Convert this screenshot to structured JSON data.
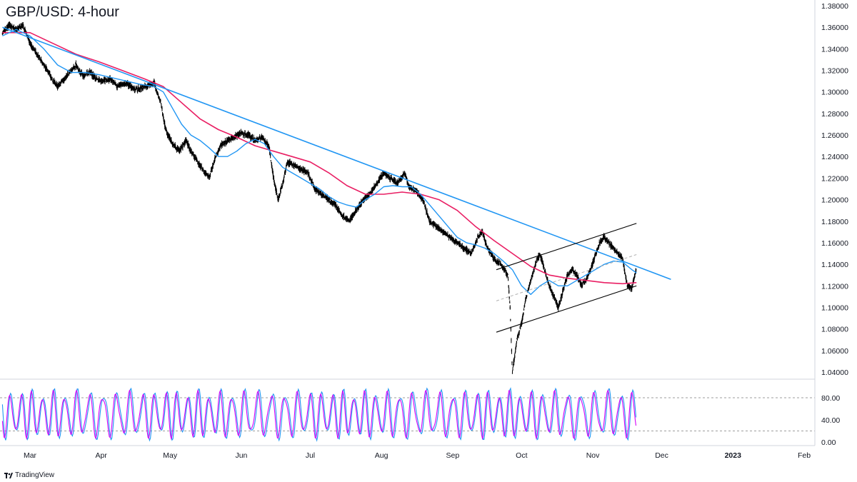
{
  "title": "GBP/USD: 4-hour",
  "brand": "TradingView",
  "colors": {
    "candles": "#000000",
    "ma_fast": "#2196f3",
    "ma_slow": "#e91e63",
    "trendline": "#2196f3",
    "channel": "#000000",
    "stoch_k": "#2196f3",
    "stoch_d": "#d500f9",
    "grid": "#9e9e9e"
  },
  "chart_data": [
    {
      "type": "line",
      "description_panel": "price",
      "ylim": [
        1.03,
        1.38
      ],
      "yticks": [
        "1.38000",
        "1.36000",
        "1.34000",
        "1.32000",
        "1.30000",
        "1.28000",
        "1.26000",
        "1.24000",
        "1.22000",
        "1.20000",
        "1.18000",
        "1.16000",
        "1.14000",
        "1.12000",
        "1.10000",
        "1.08000",
        "1.06000",
        "1.04000"
      ],
      "x_labels": [
        "Mar",
        "Apr",
        "May",
        "Jun",
        "Jul",
        "Aug",
        "Sep",
        "Oct",
        "Nov",
        "Dec",
        "2023",
        "Feb"
      ],
      "x_label_days": [
        0,
        31,
        61,
        92,
        122,
        153,
        184,
        214,
        245,
        275,
        306,
        337
      ],
      "x_range_days": [
        -12,
        357
      ],
      "series": [
        {
          "kind": "price",
          "points": [
            [
              -12,
              1.355
            ],
            [
              -9,
              1.362
            ],
            [
              -6,
              1.358
            ],
            [
              -3,
              1.362
            ],
            [
              0,
              1.345
            ],
            [
              3,
              1.335
            ],
            [
              6,
              1.325
            ],
            [
              8,
              1.318
            ],
            [
              10,
              1.31
            ],
            [
              12,
              1.305
            ],
            [
              14,
              1.31
            ],
            [
              16,
              1.315
            ],
            [
              18,
              1.32
            ],
            [
              20,
              1.325
            ],
            [
              23,
              1.315
            ],
            [
              26,
              1.318
            ],
            [
              29,
              1.312
            ],
            [
              32,
              1.31
            ],
            [
              35,
              1.312
            ],
            [
              38,
              1.305
            ],
            [
              42,
              1.308
            ],
            [
              46,
              1.302
            ],
            [
              50,
              1.305
            ],
            [
              54,
              1.308
            ],
            [
              57,
              1.29
            ],
            [
              59,
              1.265
            ],
            [
              62,
              1.252
            ],
            [
              65,
              1.245
            ],
            [
              68,
              1.255
            ],
            [
              70,
              1.245
            ],
            [
              73,
              1.235
            ],
            [
              76,
              1.225
            ],
            [
              78,
              1.22
            ],
            [
              80,
              1.235
            ],
            [
              83,
              1.25
            ],
            [
              86,
              1.255
            ],
            [
              89,
              1.258
            ],
            [
              92,
              1.262
            ],
            [
              95,
              1.26
            ],
            [
              98,
              1.255
            ],
            [
              101,
              1.258
            ],
            [
              104,
              1.25
            ],
            [
              106,
              1.22
            ],
            [
              108,
              1.2
            ],
            [
              110,
              1.215
            ],
            [
              112,
              1.235
            ],
            [
              115,
              1.232
            ],
            [
              118,
              1.228
            ],
            [
              121,
              1.225
            ],
            [
              124,
              1.21
            ],
            [
              127,
              1.205
            ],
            [
              130,
              1.2
            ],
            [
              133,
              1.195
            ],
            [
              136,
              1.185
            ],
            [
              139,
              1.18
            ],
            [
              142,
              1.19
            ],
            [
              145,
              1.2
            ],
            [
              148,
              1.205
            ],
            [
              151,
              1.215
            ],
            [
              154,
              1.225
            ],
            [
              157,
              1.22
            ],
            [
              160,
              1.215
            ],
            [
              163,
              1.225
            ],
            [
              165,
              1.212
            ],
            [
              168,
              1.208
            ],
            [
              171,
              1.2
            ],
            [
              174,
              1.18
            ],
            [
              177,
              1.175
            ],
            [
              180,
              1.17
            ],
            [
              183,
              1.165
            ],
            [
              186,
              1.16
            ],
            [
              189,
              1.155
            ],
            [
              192,
              1.15
            ],
            [
              195,
              1.165
            ],
            [
              197,
              1.17
            ],
            [
              199,
              1.155
            ],
            [
              202,
              1.145
            ],
            [
              205,
              1.14
            ],
            [
              208,
              1.13
            ],
            [
              209,
              1.1
            ],
            [
              210,
              1.04
            ],
            [
              212,
              1.07
            ],
            [
              214,
              1.085
            ],
            [
              216,
              1.11
            ],
            [
              218,
              1.125
            ],
            [
              220,
              1.14
            ],
            [
              222,
              1.15
            ],
            [
              224,
              1.135
            ],
            [
              226,
              1.12
            ],
            [
              228,
              1.11
            ],
            [
              230,
              1.1
            ],
            [
              232,
              1.115
            ],
            [
              234,
              1.13
            ],
            [
              236,
              1.135
            ],
            [
              238,
              1.13
            ],
            [
              240,
              1.12
            ],
            [
              242,
              1.125
            ],
            [
              244,
              1.135
            ],
            [
              246,
              1.148
            ],
            [
              248,
              1.16
            ],
            [
              250,
              1.165
            ],
            [
              252,
              1.16
            ],
            [
              254,
              1.155
            ],
            [
              256,
              1.15
            ],
            [
              258,
              1.145
            ],
            [
              260,
              1.12
            ],
            [
              262,
              1.118
            ],
            [
              263,
              1.128
            ],
            [
              264,
              1.135
            ]
          ]
        },
        {
          "kind": "ma_fast",
          "points": [
            [
              -12,
              1.352
            ],
            [
              -6,
              1.358
            ],
            [
              0,
              1.352
            ],
            [
              6,
              1.34
            ],
            [
              12,
              1.325
            ],
            [
              18,
              1.318
            ],
            [
              24,
              1.318
            ],
            [
              30,
              1.316
            ],
            [
              36,
              1.313
            ],
            [
              42,
              1.31
            ],
            [
              48,
              1.307
            ],
            [
              54,
              1.305
            ],
            [
              58,
              1.3
            ],
            [
              62,
              1.285
            ],
            [
              66,
              1.27
            ],
            [
              70,
              1.26
            ],
            [
              74,
              1.255
            ],
            [
              78,
              1.248
            ],
            [
              82,
              1.24
            ],
            [
              86,
              1.24
            ],
            [
              90,
              1.245
            ],
            [
              94,
              1.252
            ],
            [
              98,
              1.256
            ],
            [
              102,
              1.252
            ],
            [
              106,
              1.24
            ],
            [
              110,
              1.23
            ],
            [
              114,
              1.225
            ],
            [
              118,
              1.22
            ],
            [
              122,
              1.215
            ],
            [
              126,
              1.21
            ],
            [
              130,
              1.203
            ],
            [
              134,
              1.198
            ],
            [
              138,
              1.195
            ],
            [
              142,
              1.193
            ],
            [
              146,
              1.2
            ],
            [
              150,
              1.205
            ],
            [
              154,
              1.212
            ],
            [
              158,
              1.213
            ],
            [
              162,
              1.212
            ],
            [
              166,
              1.212
            ],
            [
              170,
              1.205
            ],
            [
              174,
              1.195
            ],
            [
              178,
              1.185
            ],
            [
              182,
              1.175
            ],
            [
              186,
              1.165
            ],
            [
              190,
              1.16
            ],
            [
              194,
              1.158
            ],
            [
              198,
              1.155
            ],
            [
              202,
              1.15
            ],
            [
              206,
              1.143
            ],
            [
              210,
              1.135
            ],
            [
              214,
              1.12
            ],
            [
              218,
              1.112
            ],
            [
              222,
              1.12
            ],
            [
              226,
              1.125
            ],
            [
              230,
              1.12
            ],
            [
              234,
              1.12
            ],
            [
              238,
              1.125
            ],
            [
              242,
              1.13
            ],
            [
              246,
              1.135
            ],
            [
              250,
              1.14
            ],
            [
              254,
              1.143
            ],
            [
              258,
              1.142
            ],
            [
              262,
              1.135
            ],
            [
              264,
              1.132
            ]
          ]
        },
        {
          "kind": "ma_slow",
          "points": [
            [
              -12,
              1.355
            ],
            [
              0,
              1.355
            ],
            [
              10,
              1.345
            ],
            [
              20,
              1.335
            ],
            [
              30,
              1.328
            ],
            [
              40,
              1.32
            ],
            [
              50,
              1.312
            ],
            [
              58,
              1.305
            ],
            [
              66,
              1.29
            ],
            [
              74,
              1.275
            ],
            [
              82,
              1.265
            ],
            [
              90,
              1.258
            ],
            [
              98,
              1.25
            ],
            [
              106,
              1.245
            ],
            [
              114,
              1.24
            ],
            [
              122,
              1.235
            ],
            [
              130,
              1.225
            ],
            [
              138,
              1.213
            ],
            [
              146,
              1.205
            ],
            [
              154,
              1.205
            ],
            [
              162,
              1.207
            ],
            [
              170,
              1.205
            ],
            [
              178,
              1.2
            ],
            [
              186,
              1.19
            ],
            [
              194,
              1.175
            ],
            [
              202,
              1.162
            ],
            [
              210,
              1.15
            ],
            [
              218,
              1.138
            ],
            [
              226,
              1.13
            ],
            [
              234,
              1.127
            ],
            [
              242,
              1.125
            ],
            [
              250,
              1.123
            ],
            [
              258,
              1.122
            ],
            [
              264,
              1.123
            ]
          ]
        },
        {
          "kind": "trendline",
          "points": [
            [
              -12,
              1.36
            ],
            [
              279,
              1.126
            ]
          ]
        },
        {
          "kind": "channel_upper",
          "points": [
            [
              203,
              1.135
            ],
            [
              264,
              1.178
            ]
          ]
        },
        {
          "kind": "channel_lower",
          "points": [
            [
              203,
              1.077
            ],
            [
              264,
              1.12
            ]
          ]
        },
        {
          "kind": "channel_mid",
          "points": [
            [
              203,
              1.106
            ],
            [
              264,
              1.149
            ]
          ]
        }
      ]
    },
    {
      "type": "line",
      "description_panel": "stochastic",
      "ylim": [
        -5,
        105
      ],
      "yticks": [
        "80.00",
        "40.00",
        "0.00"
      ],
      "series": [
        {
          "kind": "stoch_k",
          "period_days": 5.2,
          "phase": 0.0,
          "min": 8,
          "max": 92,
          "x_range": [
            -12,
            264
          ]
        },
        {
          "kind": "stoch_d",
          "period_days": 5.2,
          "phase": 0.6,
          "min": 10,
          "max": 88,
          "x_range": [
            -12,
            264
          ]
        }
      ],
      "levels": [
        80,
        20
      ]
    }
  ]
}
